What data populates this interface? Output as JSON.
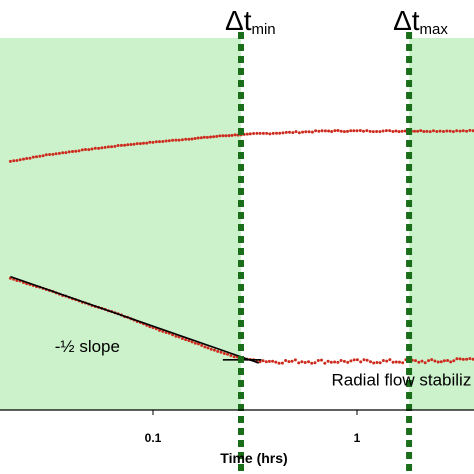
{
  "chart_data": {
    "type": "scatter",
    "title": "",
    "xlabel": "Time (hrs)",
    "ylabel": "",
    "xscale": "log",
    "xlim": [
      0.02,
      4
    ],
    "x_ticks": [
      {
        "value": 0.1,
        "label": "0.1"
      },
      {
        "value": 1,
        "label": "1"
      }
    ],
    "grid": false,
    "legend": "none",
    "background": "#ccf2cc",
    "window": {
      "x_start": 0.27,
      "x_end": 1.8,
      "color": "#ffffff"
    },
    "vlines": [
      {
        "x": 0.27,
        "label_main": "Δt",
        "label_sub": "min",
        "color": "#1a6e1a",
        "style": "dotted"
      },
      {
        "x": 1.8,
        "label_main": "Δt",
        "label_sub": "max",
        "color": "#1a6e1a",
        "style": "dotted"
      }
    ],
    "series": [
      {
        "marker_color": "#cc2b1d",
        "points": [
          [
            0.02,
            146
          ],
          [
            0.03,
            150
          ],
          [
            0.045,
            153
          ],
          [
            0.07,
            156
          ],
          [
            0.1,
            158
          ],
          [
            0.15,
            160
          ],
          [
            0.22,
            162
          ],
          [
            0.3,
            163
          ],
          [
            0.45,
            164
          ],
          [
            0.7,
            165
          ],
          [
            1.0,
            165
          ],
          [
            1.5,
            165
          ],
          [
            2.2,
            165
          ],
          [
            3.2,
            165
          ],
          [
            4.0,
            165
          ]
        ]
      },
      {
        "marker_color": "#cc2b1d",
        "points": [
          [
            0.02,
            73
          ],
          [
            0.03,
            66
          ],
          [
            0.045,
            58
          ],
          [
            0.07,
            50
          ],
          [
            0.1,
            42
          ],
          [
            0.15,
            34
          ],
          [
            0.2,
            28
          ],
          [
            0.25,
            24
          ],
          [
            0.3,
            22
          ],
          [
            0.4,
            21
          ],
          [
            0.6,
            21
          ],
          [
            0.9,
            21
          ],
          [
            1.3,
            21
          ],
          [
            1.8,
            21
          ],
          [
            2.5,
            21
          ],
          [
            3.2,
            22
          ],
          [
            4.0,
            23
          ]
        ]
      }
    ],
    "fit_lines": [
      {
        "points": [
          [
            0.02,
            74
          ],
          [
            0.33,
            20
          ]
        ],
        "color": "#000000"
      },
      {
        "points": [
          [
            0.22,
            22
          ],
          [
            0.34,
            22
          ]
        ],
        "color": "#000000"
      }
    ],
    "annotations": [
      {
        "text": "-½ slope",
        "x": 0.033,
        "y": 27
      },
      {
        "text": "Radial flow stabiliz",
        "x": 0.75,
        "y": 6
      }
    ]
  }
}
